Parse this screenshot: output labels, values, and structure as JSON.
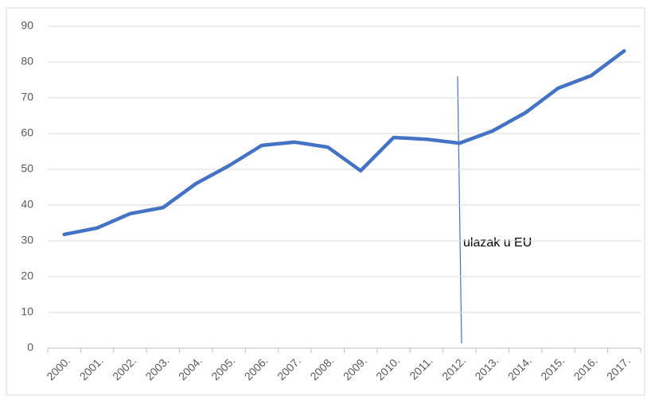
{
  "chart_data": {
    "type": "line",
    "categories": [
      "2000.",
      "2001.",
      "2002.",
      "2003.",
      "2004.",
      "2005.",
      "2006.",
      "2007.",
      "2008.",
      "2009.",
      "2010.",
      "2011.",
      "2012.",
      "2013.",
      "2014.",
      "2015.",
      "2016.",
      "2017."
    ],
    "series": [
      {
        "color": "#4472c4",
        "values": [
          31.8,
          33.6,
          37.6,
          39.3,
          46,
          51,
          56.7,
          57.6,
          56.2,
          49.6,
          58.9,
          58.4,
          57.3,
          60.7,
          65.8,
          72.7,
          76.2,
          83.1
        ]
      }
    ],
    "ylim": [
      0,
      90
    ],
    "yticks": [
      0,
      10,
      20,
      30,
      40,
      50,
      60,
      70,
      80,
      90
    ],
    "grid": true,
    "annotations": [
      "ulazak u EU"
    ]
  }
}
